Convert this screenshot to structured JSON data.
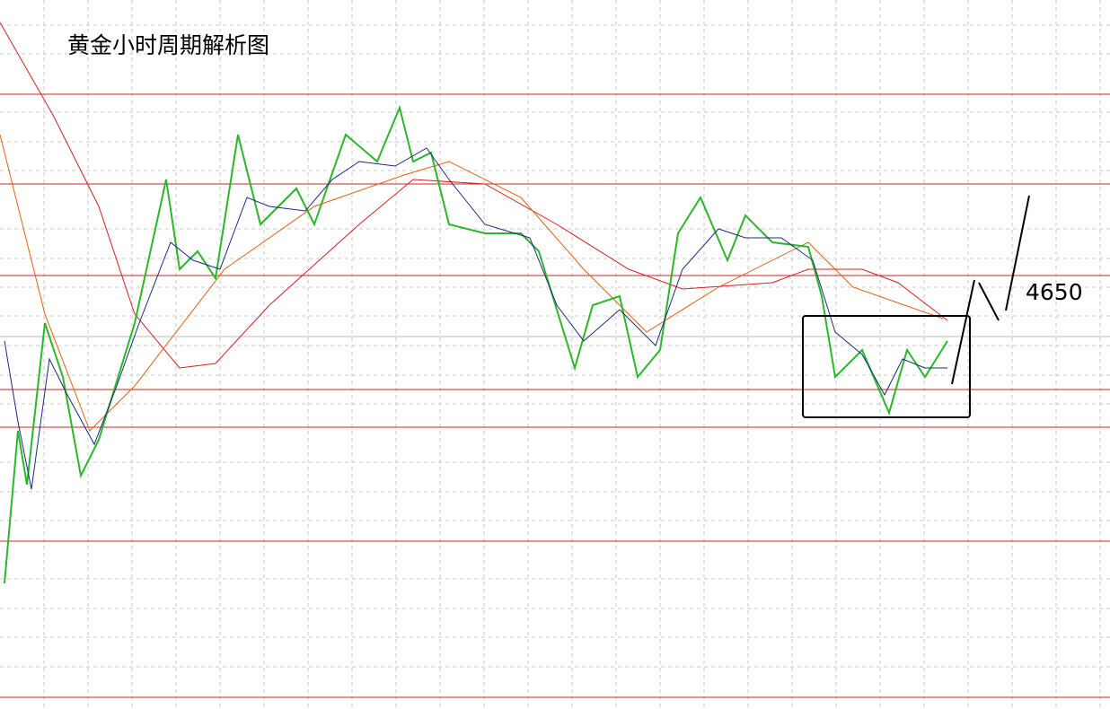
{
  "chart_data": {
    "type": "candlestick",
    "title": "黄金小时周期解析图",
    "annotation": "4650"
  }
}
